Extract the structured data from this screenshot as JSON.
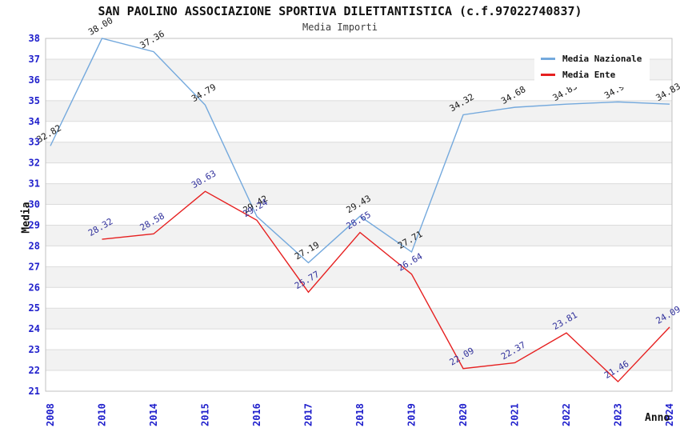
{
  "chart_data": {
    "type": "line",
    "title": "SAN PAOLINO ASSOCIAZIONE SPORTIVA DILETTANTISTICA (c.f.97022740837)",
    "subtitle": "Media Importi",
    "xlabel": "Anno",
    "ylabel": "Media",
    "ylim": [
      21,
      38
    ],
    "ytick_step": 1,
    "grid": "horizontal-bands",
    "legend_position": "top-right",
    "categories": [
      "2008",
      "2010",
      "2014",
      "2015",
      "2016",
      "2017",
      "2018",
      "2019",
      "2020",
      "2021",
      "2022",
      "2023",
      "2024"
    ],
    "series": [
      {
        "name": "Media Nazionale",
        "color": "#74a9dd",
        "label_color": "#1a1a1a",
        "values": [
          32.82,
          38.0,
          37.36,
          34.79,
          29.42,
          27.19,
          29.43,
          27.71,
          34.32,
          34.68,
          34.83,
          34.94,
          34.83
        ]
      },
      {
        "name": "Media Ente",
        "color": "#e62020",
        "label_color": "#31319c",
        "values": [
          null,
          28.32,
          28.58,
          30.63,
          29.24,
          25.77,
          28.65,
          26.64,
          22.09,
          22.37,
          23.81,
          21.46,
          24.09
        ]
      }
    ],
    "colors": {
      "band_gray": "#f2f2f2",
      "band_white": "#ffffff",
      "gridline": "#dcdcdc",
      "plot_border": "#c0c0c0",
      "axis_tick": "#2020cc"
    }
  }
}
